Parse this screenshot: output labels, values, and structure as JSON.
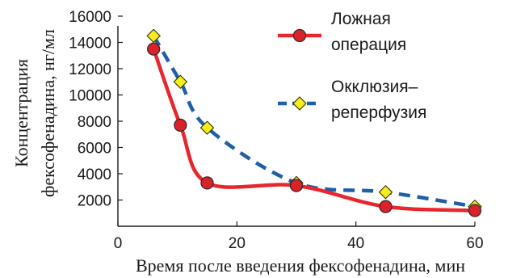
{
  "chart_data": {
    "type": "line",
    "title": "",
    "xlabel": "Время после введения фексофенадина, мин",
    "ylabel_lines": [
      "Концентрация",
      "фексофенадина, нг/мл"
    ],
    "xlim": [
      0,
      60
    ],
    "ylim": [
      0,
      16000
    ],
    "x_ticks": [
      0,
      20,
      40,
      60
    ],
    "y_ticks": [
      2000,
      4000,
      6000,
      8000,
      10000,
      12000,
      14000,
      16000
    ],
    "grid": false,
    "legend_position": "top-right",
    "series": [
      {
        "name_lines": [
          "Ложная",
          "операция"
        ],
        "line_style": "solid",
        "line_color": "#e8262d",
        "marker": "circle",
        "marker_color": "#d9232a",
        "x": [
          6,
          10.5,
          15,
          30,
          45,
          60
        ],
        "y": [
          13500,
          7700,
          3300,
          3100,
          1500,
          1200
        ]
      },
      {
        "name_lines": [
          "Окклюзия–",
          "реперфузия"
        ],
        "line_style": "dashed",
        "line_color": "#1f5fa8",
        "marker": "diamond",
        "marker_color": "#f5ee1e",
        "x": [
          6,
          10.5,
          15,
          30,
          45,
          60
        ],
        "y": [
          14500,
          11000,
          7500,
          3300,
          2600,
          1500
        ]
      }
    ]
  }
}
